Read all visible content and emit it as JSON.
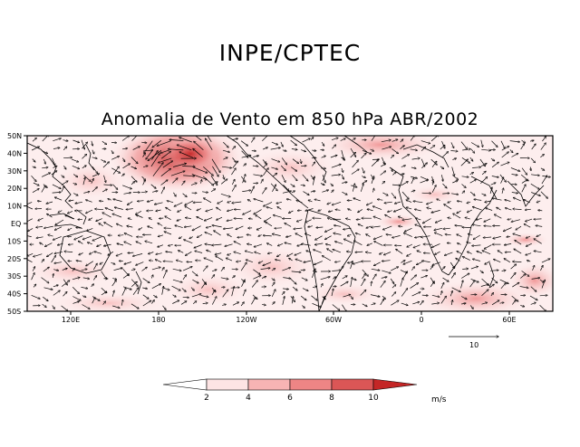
{
  "header": {
    "title": "INPE/CPTEC",
    "subtitle": "Anomalia de Vento em 850 hPa ABR/2002"
  },
  "map": {
    "lat_labels": [
      "50N",
      "40N",
      "30N",
      "20N",
      "10N",
      "EQ",
      "10S",
      "20S",
      "30S",
      "40S",
      "50S"
    ],
    "lon_labels": [
      "120E",
      "180",
      "120W",
      "60W",
      "0",
      "60E"
    ],
    "colors": {
      "frame": "#000000",
      "coast": "#000000",
      "arrow": "#000000"
    }
  },
  "reference_vector": {
    "label": "10"
  },
  "colorbar": {
    "ticks": [
      "2",
      "4",
      "6",
      "8",
      "10"
    ],
    "unit": "m/s",
    "colors": [
      "#ffffff",
      "#fde4e4",
      "#f7b4b4",
      "#ee8585",
      "#db5656",
      "#c42626"
    ]
  }
}
